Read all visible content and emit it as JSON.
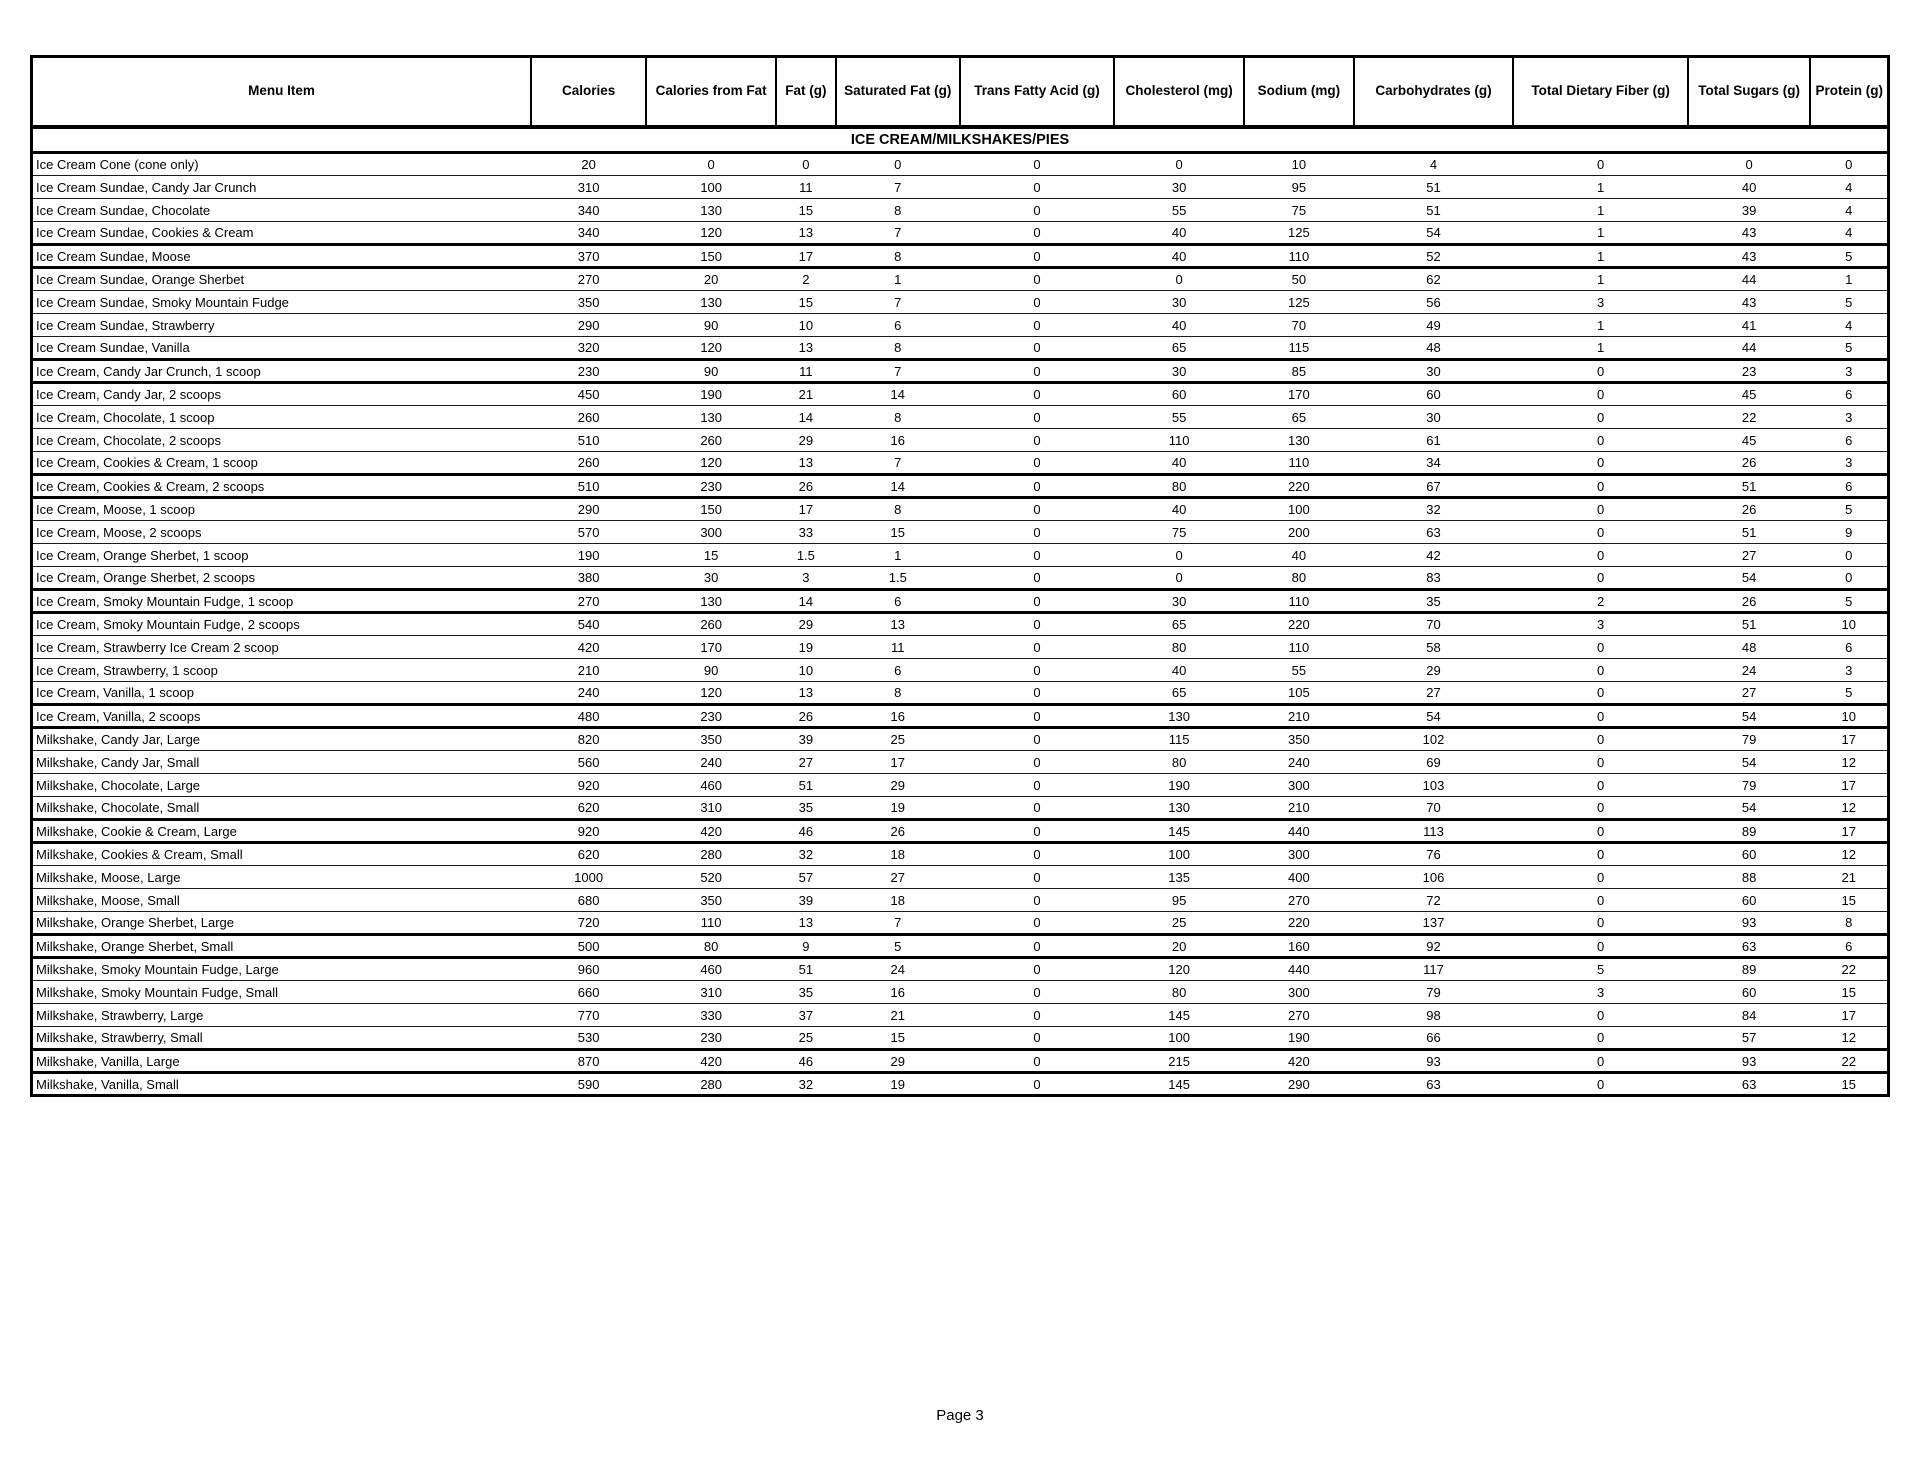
{
  "page": {
    "footer": "Page 3"
  },
  "table": {
    "section_title": "ICE CREAM/MILKSHAKES/PIES",
    "columns": [
      "Menu Item",
      "Calories",
      "Calories from Fat",
      "Fat (g)",
      "Saturated Fat (g)",
      "Trans Fatty Acid (g)",
      "Cholesterol (mg)",
      "Sodium (mg)",
      "Carbohydrates (g)",
      "Total Dietary Fiber (g)",
      "Total Sugars (g)",
      "Protein (g)"
    ],
    "rows": [
      [
        "Ice Cream Cone (cone only)",
        "20",
        "0",
        "0",
        "0",
        "0",
        "0",
        "10",
        "4",
        "0",
        "0",
        "0"
      ],
      [
        "Ice Cream Sundae, Candy Jar Crunch",
        "310",
        "100",
        "11",
        "7",
        "0",
        "30",
        "95",
        "51",
        "1",
        "40",
        "4"
      ],
      [
        "Ice Cream Sundae, Chocolate",
        "340",
        "130",
        "15",
        "8",
        "0",
        "55",
        "75",
        "51",
        "1",
        "39",
        "4"
      ],
      [
        "Ice Cream Sundae, Cookies & Cream",
        "340",
        "120",
        "13",
        "7",
        "0",
        "40",
        "125",
        "54",
        "1",
        "43",
        "4"
      ],
      [
        "Ice Cream Sundae, Moose",
        "370",
        "150",
        "17",
        "8",
        "0",
        "40",
        "110",
        "52",
        "1",
        "43",
        "5"
      ],
      [
        "Ice Cream Sundae, Orange Sherbet",
        "270",
        "20",
        "2",
        "1",
        "0",
        "0",
        "50",
        "62",
        "1",
        "44",
        "1"
      ],
      [
        "Ice Cream Sundae, Smoky Mountain Fudge",
        "350",
        "130",
        "15",
        "7",
        "0",
        "30",
        "125",
        "56",
        "3",
        "43",
        "5"
      ],
      [
        "Ice Cream Sundae, Strawberry",
        "290",
        "90",
        "10",
        "6",
        "0",
        "40",
        "70",
        "49",
        "1",
        "41",
        "4"
      ],
      [
        "Ice Cream Sundae, Vanilla",
        "320",
        "120",
        "13",
        "8",
        "0",
        "65",
        "115",
        "48",
        "1",
        "44",
        "5"
      ],
      [
        "Ice Cream, Candy Jar Crunch, 1 scoop",
        "230",
        "90",
        "11",
        "7",
        "0",
        "30",
        "85",
        "30",
        "0",
        "23",
        "3"
      ],
      [
        "Ice Cream, Candy Jar, 2 scoops",
        "450",
        "190",
        "21",
        "14",
        "0",
        "60",
        "170",
        "60",
        "0",
        "45",
        "6"
      ],
      [
        "Ice Cream, Chocolate, 1 scoop",
        "260",
        "130",
        "14",
        "8",
        "0",
        "55",
        "65",
        "30",
        "0",
        "22",
        "3"
      ],
      [
        "Ice Cream, Chocolate, 2 scoops",
        "510",
        "260",
        "29",
        "16",
        "0",
        "110",
        "130",
        "61",
        "0",
        "45",
        "6"
      ],
      [
        "Ice Cream, Cookies & Cream, 1 scoop",
        "260",
        "120",
        "13",
        "7",
        "0",
        "40",
        "110",
        "34",
        "0",
        "26",
        "3"
      ],
      [
        "Ice Cream, Cookies & Cream, 2 scoops",
        "510",
        "230",
        "26",
        "14",
        "0",
        "80",
        "220",
        "67",
        "0",
        "51",
        "6"
      ],
      [
        "Ice Cream, Moose, 1 scoop",
        "290",
        "150",
        "17",
        "8",
        "0",
        "40",
        "100",
        "32",
        "0",
        "26",
        "5"
      ],
      [
        "Ice Cream, Moose, 2 scoops",
        "570",
        "300",
        "33",
        "15",
        "0",
        "75",
        "200",
        "63",
        "0",
        "51",
        "9"
      ],
      [
        "Ice Cream, Orange Sherbet, 1 scoop",
        "190",
        "15",
        "1.5",
        "1",
        "0",
        "0",
        "40",
        "42",
        "0",
        "27",
        "0"
      ],
      [
        "Ice Cream, Orange Sherbet, 2 scoops",
        "380",
        "30",
        "3",
        "1.5",
        "0",
        "0",
        "80",
        "83",
        "0",
        "54",
        "0"
      ],
      [
        "Ice Cream, Smoky Mountain Fudge, 1 scoop",
        "270",
        "130",
        "14",
        "6",
        "0",
        "30",
        "110",
        "35",
        "2",
        "26",
        "5"
      ],
      [
        "Ice Cream, Smoky Mountain Fudge, 2 scoops",
        "540",
        "260",
        "29",
        "13",
        "0",
        "65",
        "220",
        "70",
        "3",
        "51",
        "10"
      ],
      [
        "Ice Cream, Strawberry Ice Cream 2 scoop",
        "420",
        "170",
        "19",
        "11",
        "0",
        "80",
        "110",
        "58",
        "0",
        "48",
        "6"
      ],
      [
        "Ice Cream, Strawberry, 1 scoop",
        "210",
        "90",
        "10",
        "6",
        "0",
        "40",
        "55",
        "29",
        "0",
        "24",
        "3"
      ],
      [
        "Ice Cream, Vanilla, 1 scoop",
        "240",
        "120",
        "13",
        "8",
        "0",
        "65",
        "105",
        "27",
        "0",
        "27",
        "5"
      ],
      [
        "Ice Cream, Vanilla, 2 scoops",
        "480",
        "230",
        "26",
        "16",
        "0",
        "130",
        "210",
        "54",
        "0",
        "54",
        "10"
      ],
      [
        "Milkshake, Candy Jar, Large",
        "820",
        "350",
        "39",
        "25",
        "0",
        "115",
        "350",
        "102",
        "0",
        "79",
        "17"
      ],
      [
        "Milkshake, Candy Jar, Small",
        "560",
        "240",
        "27",
        "17",
        "0",
        "80",
        "240",
        "69",
        "0",
        "54",
        "12"
      ],
      [
        "Milkshake, Chocolate, Large",
        "920",
        "460",
        "51",
        "29",
        "0",
        "190",
        "300",
        "103",
        "0",
        "79",
        "17"
      ],
      [
        "Milkshake, Chocolate, Small",
        "620",
        "310",
        "35",
        "19",
        "0",
        "130",
        "210",
        "70",
        "0",
        "54",
        "12"
      ],
      [
        "Milkshake, Cookie & Cream, Large",
        "920",
        "420",
        "46",
        "26",
        "0",
        "145",
        "440",
        "113",
        "0",
        "89",
        "17"
      ],
      [
        "Milkshake, Cookies & Cream, Small",
        "620",
        "280",
        "32",
        "18",
        "0",
        "100",
        "300",
        "76",
        "0",
        "60",
        "12"
      ],
      [
        "Milkshake, Moose, Large",
        "1000",
        "520",
        "57",
        "27",
        "0",
        "135",
        "400",
        "106",
        "0",
        "88",
        "21"
      ],
      [
        "Milkshake, Moose, Small",
        "680",
        "350",
        "39",
        "18",
        "0",
        "95",
        "270",
        "72",
        "0",
        "60",
        "15"
      ],
      [
        "Milkshake, Orange Sherbet, Large",
        "720",
        "110",
        "13",
        "7",
        "0",
        "25",
        "220",
        "137",
        "0",
        "93",
        "8"
      ],
      [
        "Milkshake, Orange Sherbet, Small",
        "500",
        "80",
        "9",
        "5",
        "0",
        "20",
        "160",
        "92",
        "0",
        "63",
        "6"
      ],
      [
        "Milkshake, Smoky Mountain Fudge, Large",
        "960",
        "460",
        "51",
        "24",
        "0",
        "120",
        "440",
        "117",
        "5",
        "89",
        "22"
      ],
      [
        "Milkshake, Smoky Mountain Fudge, Small",
        "660",
        "310",
        "35",
        "16",
        "0",
        "80",
        "300",
        "79",
        "3",
        "60",
        "15"
      ],
      [
        "Milkshake, Strawberry, Large",
        "770",
        "330",
        "37",
        "21",
        "0",
        "145",
        "270",
        "98",
        "0",
        "84",
        "17"
      ],
      [
        "Milkshake, Strawberry, Small",
        "530",
        "230",
        "25",
        "15",
        "0",
        "100",
        "190",
        "66",
        "0",
        "57",
        "12"
      ],
      [
        "Milkshake, Vanilla, Large",
        "870",
        "420",
        "46",
        "29",
        "0",
        "215",
        "420",
        "93",
        "0",
        "93",
        "22"
      ],
      [
        "Milkshake, Vanilla, Small",
        "590",
        "280",
        "32",
        "19",
        "0",
        "145",
        "290",
        "63",
        "0",
        "63",
        "15"
      ]
    ]
  }
}
